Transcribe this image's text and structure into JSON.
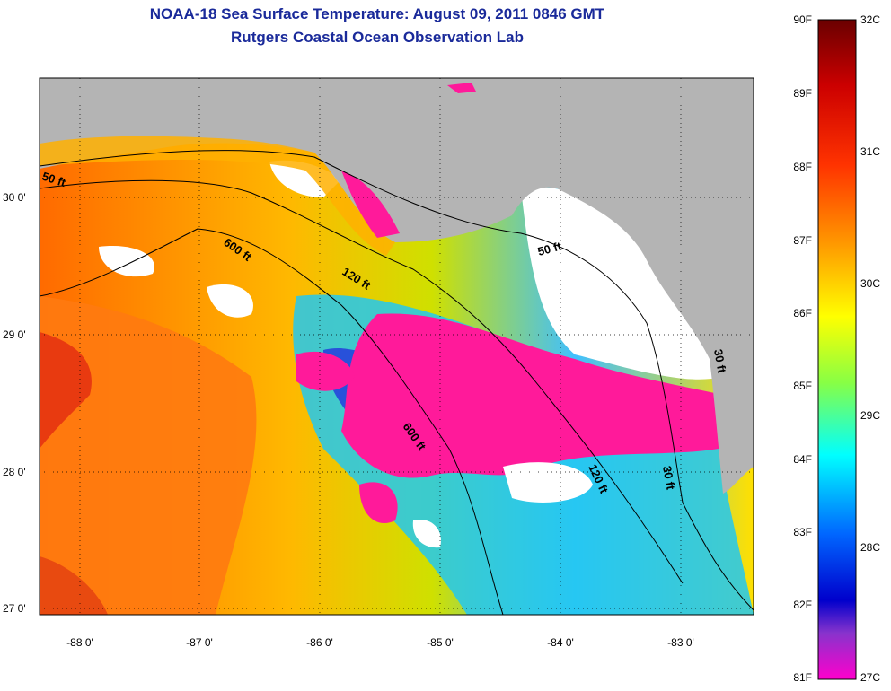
{
  "title": {
    "line1": "NOAA-18 Sea Surface Temperature:  August 09, 2011 0846 GMT",
    "line2": "Rutgers Coastal Ocean Observation Lab"
  },
  "map": {
    "x_ticks": [
      "-88 0'",
      "-87 0'",
      "-86 0'",
      "-85 0'",
      "-84 0'",
      "-83 0'"
    ],
    "y_ticks": [
      "30 0'",
      "29 0'",
      "28 0'",
      "27 0'"
    ],
    "depth_contours": [
      "50 ft",
      "600 ft",
      "120 ft",
      "50 ft",
      "600 ft",
      "120 ft",
      "30 ft",
      "30 ft"
    ],
    "land_color": "#b4b4b4",
    "cloud_color": "#ffffff"
  },
  "colorbar": {
    "fahrenheit": [
      "90F",
      "89F",
      "88F",
      "87F",
      "86F",
      "85F",
      "84F",
      "83F",
      "82F",
      "81F"
    ],
    "celsius": [
      "32C",
      "31C",
      "30C",
      "29C",
      "28C",
      "27C"
    ],
    "colors": [
      "#7a0000",
      "#ff0000",
      "#ff8800",
      "#ffff00",
      "#00ffff",
      "#0000ff",
      "#ff00cc"
    ]
  }
}
